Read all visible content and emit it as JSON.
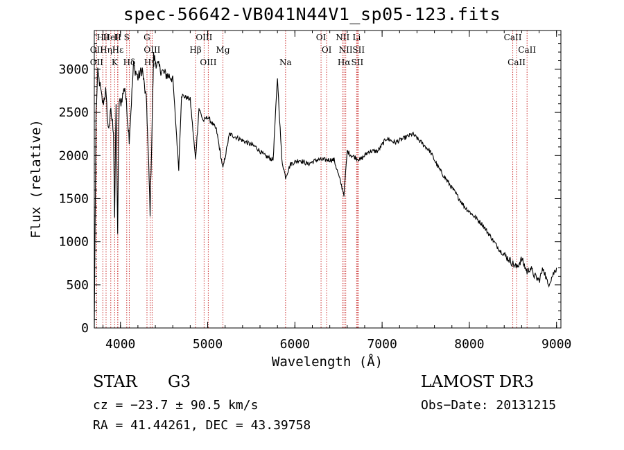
{
  "chart_data": {
    "type": "line",
    "title": "spec-56642-VB041N44V1_sp05-123.fits",
    "xlabel": "Wavelength (Å)",
    "ylabel": "Flux (relative)",
    "xlim": [
      3700,
      9050
    ],
    "ylim": [
      0,
      3450
    ],
    "xticks": [
      4000,
      5000,
      6000,
      7000,
      8000,
      9000
    ],
    "yticks": [
      0,
      500,
      1000,
      1500,
      2000,
      2500,
      3000
    ],
    "xtick_labels": [
      "4000",
      "5000",
      "6000",
      "7000",
      "8000",
      "9000"
    ],
    "ytick_labels": [
      "0",
      "500",
      "1000",
      "1500",
      "2000",
      "2500",
      "3000"
    ],
    "spectrum": {
      "x": [
        3700,
        3720,
        3740,
        3760,
        3780,
        3800,
        3830,
        3860,
        3890,
        3920,
        3933,
        3950,
        3968,
        3985,
        4000,
        4050,
        4101,
        4150,
        4200,
        4250,
        4300,
        4340,
        4380,
        4420,
        4500,
        4600,
        4668,
        4700,
        4800,
        4861,
        4900,
        4950,
        5000,
        5100,
        5175,
        5250,
        5350,
        5450,
        5550,
        5650,
        5750,
        5800,
        5850,
        5893,
        5950,
        6050,
        6150,
        6250,
        6350,
        6450,
        6563,
        6600,
        6650,
        6750,
        6850,
        6950,
        7050,
        7150,
        7250,
        7350,
        7450,
        7550,
        7650,
        7750,
        7850,
        7950,
        8050,
        8150,
        8250,
        8350,
        8450,
        8542,
        8600,
        8662,
        8700,
        8750,
        8800,
        8850,
        8900,
        8950,
        9000
      ],
      "y": [
        0,
        2500,
        2950,
        2850,
        2700,
        2600,
        2750,
        2300,
        2500,
        2300,
        1300,
        2600,
        1100,
        2650,
        2600,
        2800,
        2200,
        3050,
        2900,
        3000,
        2600,
        1350,
        3150,
        3050,
        2950,
        2900,
        1850,
        2700,
        2650,
        1950,
        2550,
        2400,
        2450,
        2300,
        1850,
        2250,
        2200,
        2150,
        2100,
        2000,
        1950,
        2900,
        1950,
        1750,
        1900,
        1950,
        1900,
        1950,
        1950,
        1950,
        1550,
        2050,
        2000,
        1950,
        2050,
        2050,
        2200,
        2150,
        2200,
        2250,
        2150,
        2050,
        1850,
        1700,
        1550,
        1400,
        1300,
        1200,
        1050,
        900,
        800,
        700,
        800,
        650,
        700,
        600,
        550,
        700,
        500,
        600,
        700
      ]
    },
    "line_markers": [
      {
        "name": "Hθ",
        "wavelength": 3798
      },
      {
        "name": "OII",
        "wavelength": 3727
      },
      {
        "name": "OII",
        "wavelength": 3727
      },
      {
        "name": "HeI",
        "wavelength": 3889
      },
      {
        "name": "Hη",
        "wavelength": 3835
      },
      {
        "name": "K",
        "wavelength": 3933
      },
      {
        "name": "H",
        "wavelength": 3968
      },
      {
        "name": "Hε",
        "wavelength": 3970
      },
      {
        "name": "Hδ",
        "wavelength": 4101
      },
      {
        "name": "S",
        "wavelength": 4072
      },
      {
        "name": "OIII",
        "wavelength": 4363
      },
      {
        "name": "Hγ",
        "wavelength": 4340
      },
      {
        "name": "G",
        "wavelength": 4304
      },
      {
        "name": "Hβ",
        "wavelength": 4861
      },
      {
        "name": "OIII",
        "wavelength": 5007
      },
      {
        "name": "OIII",
        "wavelength": 4959
      },
      {
        "name": "Mg",
        "wavelength": 5175
      },
      {
        "name": "Na",
        "wavelength": 5893
      },
      {
        "name": "OI",
        "wavelength": 6300
      },
      {
        "name": "OI",
        "wavelength": 6364
      },
      {
        "name": "Hα",
        "wavelength": 6563
      },
      {
        "name": "NII",
        "wavelength": 6548
      },
      {
        "name": "NII",
        "wavelength": 6583
      },
      {
        "name": "SII",
        "wavelength": 6716
      },
      {
        "name": "Li",
        "wavelength": 6708
      },
      {
        "name": "SII",
        "wavelength": 6731
      },
      {
        "name": "CaII",
        "wavelength": 8542
      },
      {
        "name": "CaII",
        "wavelength": 8498
      },
      {
        "name": "CaII",
        "wavelength": 8662
      }
    ]
  },
  "footer": {
    "object_class": "STAR",
    "subclass": "G3",
    "survey": "LAMOST DR3",
    "redshift": "cz = −23.7 ± 90.5 km/s",
    "obs_date": "Obs−Date: 20131215",
    "coords": "RA =  41.44261, DEC =  43.39758"
  },
  "colors": {
    "line_marker": "#cc3333",
    "spectrum": "#000000",
    "axes": "#000000"
  }
}
